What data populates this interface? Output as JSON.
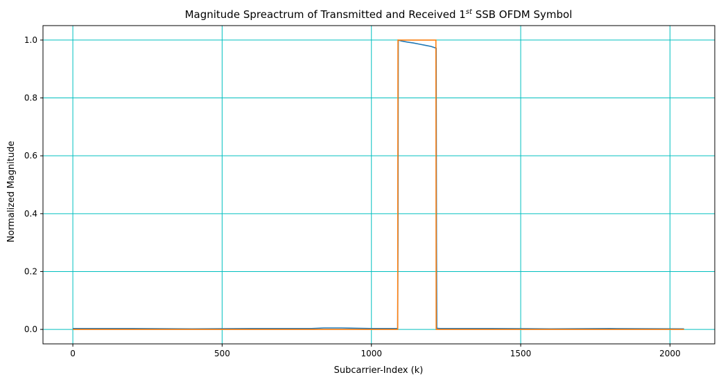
{
  "chart_data": {
    "type": "line",
    "title": "Magnitude Spreactrum of Transmitted and Received 1",
    "title_superscript": "st",
    "title_suffix": " SSB OFDM Symbol",
    "xlabel": "Subcarrier-Index (k)",
    "ylabel": "Normalized Magnitude",
    "xlim": [
      -100,
      2150
    ],
    "ylim": [
      -0.05,
      1.05
    ],
    "xticks": [
      0,
      500,
      1000,
      1500,
      2000
    ],
    "xtick_labels": [
      "0",
      "500",
      "1000",
      "1500",
      "2000"
    ],
    "yticks": [
      0.0,
      0.2,
      0.4,
      0.6,
      0.8,
      1.0
    ],
    "ytick_labels": [
      "0.0",
      "0.2",
      "0.4",
      "0.6",
      "0.8",
      "1.0"
    ],
    "grid": true,
    "grid_color": "#00bfbf",
    "series": [
      {
        "color": "#1f77b4",
        "x": [
          0,
          200,
          400,
          600,
          800,
          840,
          900,
          950,
          1000,
          1088,
          1089,
          1090,
          1100,
          1120,
          1140,
          1160,
          1180,
          1200,
          1217,
          1218,
          1219,
          1230,
          1400,
          1600,
          1800,
          2047
        ],
        "y": [
          0.003,
          0.003,
          0.002,
          0.003,
          0.003,
          0.005,
          0.005,
          0.004,
          0.003,
          0.003,
          0.3,
          1.0,
          0.997,
          0.993,
          0.99,
          0.986,
          0.982,
          0.978,
          0.972,
          0.3,
          0.004,
          0.003,
          0.003,
          0.002,
          0.003,
          0.002
        ]
      },
      {
        "color": "#ff7f0e",
        "x": [
          0,
          1088,
          1089,
          1216,
          1217,
          2047
        ],
        "y": [
          0.0,
          0.0,
          1.0,
          1.0,
          0.0,
          0.0
        ]
      }
    ]
  }
}
